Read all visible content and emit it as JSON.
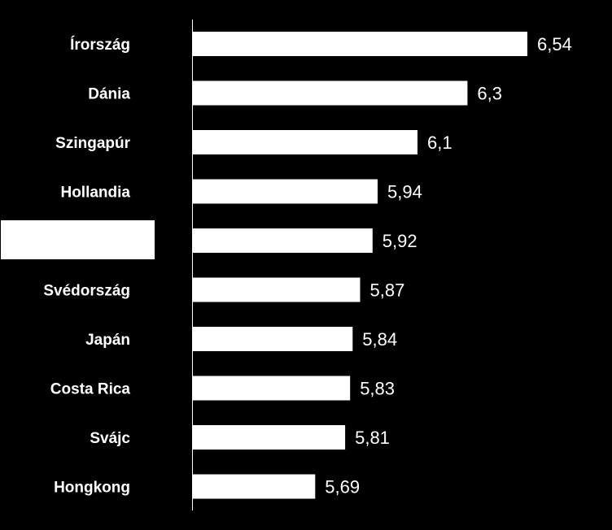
{
  "chart_data": {
    "type": "bar",
    "orientation": "horizontal",
    "title": "",
    "xlabel": "",
    "ylabel": "",
    "categories": [
      "Írország",
      "Dánia",
      "Szingapúr",
      "Hollandia",
      "",
      "Svédország",
      "Japán",
      "Costa Rica",
      "Svájc",
      "Hongkong"
    ],
    "values": [
      6.54,
      6.3,
      6.1,
      5.94,
      5.92,
      5.87,
      5.84,
      5.83,
      5.81,
      5.69
    ],
    "value_labels": [
      "6,54",
      "6,3",
      "6,1",
      "5,94",
      "5,92",
      "5,87",
      "5,84",
      "5,83",
      "5,81",
      "5,69"
    ],
    "highlighted_category_index": 4,
    "xlim": [
      5.2,
      6.54
    ],
    "grid": false,
    "legend": "none",
    "colors": {
      "background": "#000000",
      "bar": "#ffffff",
      "text": "#ffffff",
      "axis": "#ffffff",
      "highlight_box": "#ffffff"
    }
  }
}
